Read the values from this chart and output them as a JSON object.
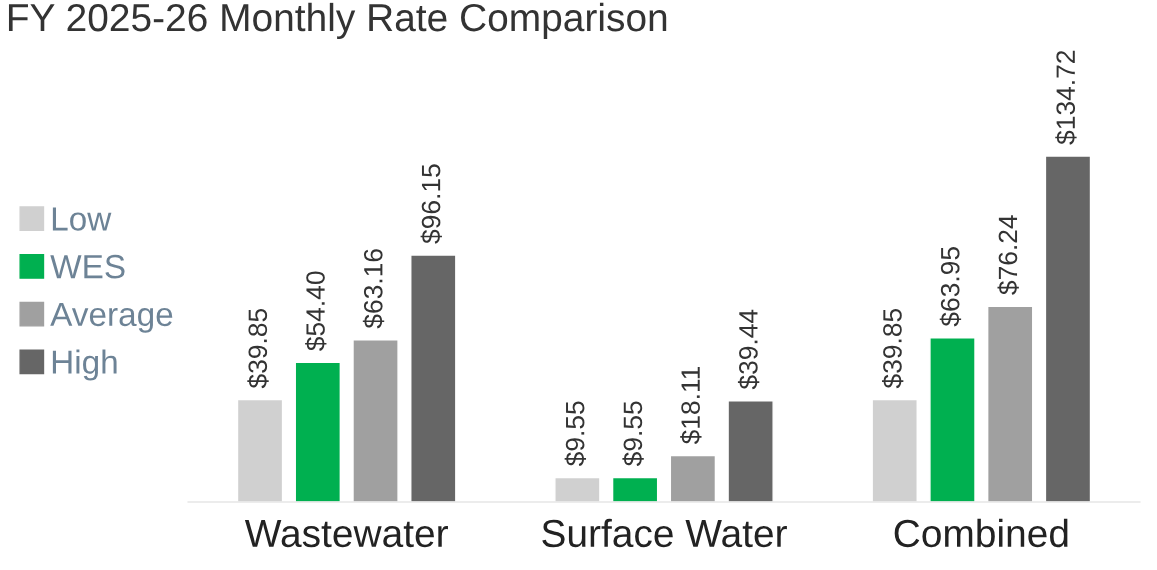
{
  "chart_data": {
    "type": "bar",
    "title": "FY 2025-26 Monthly Rate Comparison",
    "categories": [
      "Wastewater",
      "Surface Water",
      "Combined"
    ],
    "series": [
      {
        "name": "Low",
        "color": "#d0d0d0",
        "values": [
          39.85,
          9.55,
          39.85
        ],
        "value_labels": [
          "$39.85",
          "$9.55",
          "$39.85"
        ]
      },
      {
        "name": "WES",
        "color": "#00b050",
        "values": [
          54.4,
          9.55,
          63.95
        ],
        "value_labels": [
          "$54.40",
          "$9.55",
          "$63.95"
        ]
      },
      {
        "name": "Average",
        "color": "#a0a0a0",
        "values": [
          63.16,
          18.11,
          76.24
        ],
        "value_labels": [
          "$63.16",
          "$18.11",
          "$76.24"
        ]
      },
      {
        "name": "High",
        "color": "#666666",
        "values": [
          96.15,
          39.44,
          134.72
        ],
        "value_labels": [
          "$96.15",
          "$39.44",
          "$134.72"
        ]
      }
    ],
    "legend": "left",
    "grid": false
  }
}
